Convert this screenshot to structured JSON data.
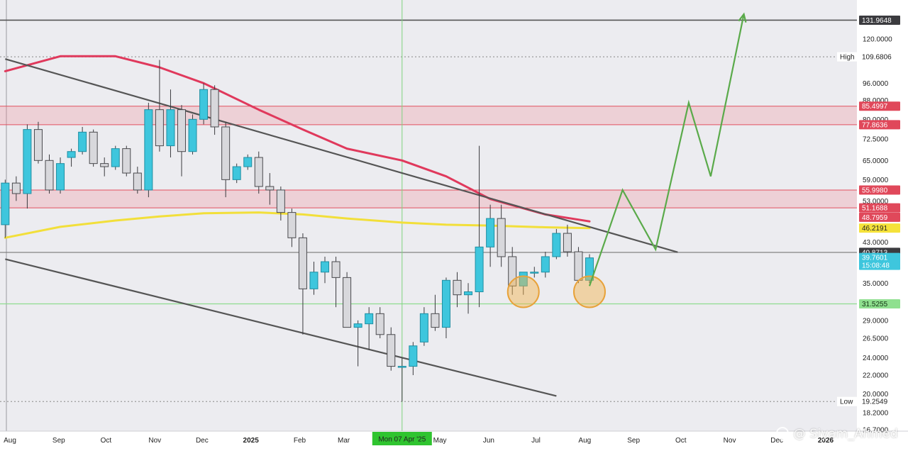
{
  "chart_data": {
    "type": "candlestick",
    "scale": "log",
    "y_ticks": [
      120.0,
      96.0,
      88.0,
      80.0,
      72.5,
      65.0,
      59.0,
      53.0,
      43.0,
      35.0,
      29.0,
      26.5,
      24.0,
      22.0,
      20.0,
      18.2,
      16.7
    ],
    "x_ticks": [
      {
        "label": "Aug",
        "date": "2024-08-01"
      },
      {
        "label": "Sep",
        "date": "2024-09-01"
      },
      {
        "label": "Oct",
        "date": "2024-10-01"
      },
      {
        "label": "Nov",
        "date": "2024-11-01"
      },
      {
        "label": "Dec",
        "date": "2024-12-01"
      },
      {
        "label": "2025",
        "date": "2025-01-01"
      },
      {
        "label": "Feb",
        "date": "2025-02-01"
      },
      {
        "label": "Mar",
        "date": "2025-03-01"
      },
      {
        "label": "May",
        "date": "2025-05-01"
      },
      {
        "label": "Jun",
        "date": "2025-06-01"
      },
      {
        "label": "Jul",
        "date": "2025-07-01"
      },
      {
        "label": "Aug",
        "date": "2025-08-01"
      },
      {
        "label": "Sep",
        "date": "2025-09-01"
      },
      {
        "label": "Oct",
        "date": "2025-10-01"
      },
      {
        "label": "Nov",
        "date": "2025-11-01"
      },
      {
        "label": "Dec",
        "date": "2025-12-01"
      },
      {
        "label": "2026",
        "date": "2026-01-01"
      }
    ],
    "crosshair": {
      "date": "2025-04-07",
      "label": "Mon 07 Apr '25"
    },
    "price_tags": [
      {
        "value": "131.9648",
        "price": 131.9648,
        "style": "dark"
      },
      {
        "value": "109.6806",
        "price": 109.6806,
        "style": "plain",
        "prefix": "High"
      },
      {
        "value": "85.4997",
        "price": 85.4997,
        "style": "red"
      },
      {
        "value": "77.8636",
        "price": 77.8636,
        "style": "red"
      },
      {
        "value": "55.9980",
        "price": 55.998,
        "style": "red"
      },
      {
        "value": "51.1688",
        "price": 51.1688,
        "style": "red"
      },
      {
        "value": "48.7959",
        "price": 48.7959,
        "style": "red"
      },
      {
        "value": "46.2191",
        "price": 46.2191,
        "style": "yellow"
      },
      {
        "value": "40.8713",
        "price": 40.8713,
        "style": "dark"
      },
      {
        "value": "39.7601",
        "price": 39.7601,
        "style": "cyan",
        "sub": "15:08:48"
      },
      {
        "value": "31.5255",
        "price": 31.5255,
        "style": "green"
      },
      {
        "value": "19.2549",
        "price": 19.2549,
        "style": "plain",
        "prefix": "Low"
      }
    ],
    "zones": [
      {
        "from": 77.8636,
        "to": 85.4997,
        "color": "#f08a93"
      },
      {
        "from": 51.1688,
        "to": 55.998,
        "color": "#f08a93"
      }
    ],
    "hlines": [
      {
        "price": 131.9648,
        "color": "#555555",
        "dash": "none"
      },
      {
        "price": 109.6806,
        "color": "#9a9a9a",
        "dash": "2,3"
      },
      {
        "price": 40.8713,
        "color": "#777777",
        "dash": "none"
      },
      {
        "price": 31.5255,
        "color": "#8fdc8f",
        "dash": "none"
      },
      {
        "price": 19.2549,
        "color": "#9a9a9a",
        "dash": "2,3"
      }
    ],
    "candles": [
      {
        "date": "2024-07-29",
        "o": 47,
        "h": 59,
        "l": 44,
        "c": 58
      },
      {
        "date": "2024-08-05",
        "o": 58,
        "h": 60,
        "l": 53,
        "c": 55
      },
      {
        "date": "2024-08-12",
        "o": 55,
        "h": 78,
        "l": 51,
        "c": 76
      },
      {
        "date": "2024-08-19",
        "o": 76,
        "h": 79,
        "l": 64,
        "c": 65
      },
      {
        "date": "2024-08-26",
        "o": 65,
        "h": 67,
        "l": 55,
        "c": 56
      },
      {
        "date": "2024-09-02",
        "o": 56,
        "h": 66,
        "l": 55,
        "c": 64
      },
      {
        "date": "2024-09-09",
        "o": 66,
        "h": 69,
        "l": 63,
        "c": 68
      },
      {
        "date": "2024-09-16",
        "o": 68,
        "h": 77,
        "l": 67,
        "c": 75
      },
      {
        "date": "2024-09-23",
        "o": 75,
        "h": 76,
        "l": 63,
        "c": 64
      },
      {
        "date": "2024-09-30",
        "o": 64,
        "h": 66,
        "l": 60,
        "c": 63
      },
      {
        "date": "2024-10-07",
        "o": 63,
        "h": 70,
        "l": 62,
        "c": 69
      },
      {
        "date": "2024-10-14",
        "o": 69,
        "h": 70,
        "l": 60,
        "c": 61
      },
      {
        "date": "2024-10-21",
        "o": 61,
        "h": 63,
        "l": 55,
        "c": 56
      },
      {
        "date": "2024-10-28",
        "o": 56,
        "h": 87,
        "l": 54,
        "c": 84
      },
      {
        "date": "2024-11-04",
        "o": 84,
        "h": 108,
        "l": 68,
        "c": 70
      },
      {
        "date": "2024-11-11",
        "o": 70,
        "h": 93,
        "l": 66,
        "c": 84
      },
      {
        "date": "2024-11-18",
        "o": 84,
        "h": 86,
        "l": 60,
        "c": 68
      },
      {
        "date": "2024-11-25",
        "o": 68,
        "h": 82,
        "l": 67,
        "c": 80
      },
      {
        "date": "2024-12-02",
        "o": 80,
        "h": 96,
        "l": 78,
        "c": 93
      },
      {
        "date": "2024-12-09",
        "o": 93,
        "h": 95,
        "l": 74,
        "c": 77
      },
      {
        "date": "2024-12-16",
        "o": 77,
        "h": 79,
        "l": 54,
        "c": 59
      },
      {
        "date": "2024-12-23",
        "o": 59,
        "h": 64,
        "l": 58,
        "c": 63
      },
      {
        "date": "2024-12-30",
        "o": 63,
        "h": 67,
        "l": 62,
        "c": 66
      },
      {
        "date": "2025-01-06",
        "o": 66,
        "h": 68,
        "l": 55,
        "c": 57
      },
      {
        "date": "2025-01-13",
        "o": 57,
        "h": 61,
        "l": 52,
        "c": 56
      },
      {
        "date": "2025-01-20",
        "o": 56,
        "h": 57,
        "l": 48,
        "c": 50
      },
      {
        "date": "2025-01-27",
        "o": 50,
        "h": 51,
        "l": 42,
        "c": 44
      },
      {
        "date": "2025-02-03",
        "o": 44,
        "h": 45,
        "l": 27,
        "c": 34
      },
      {
        "date": "2025-02-10",
        "o": 34,
        "h": 39,
        "l": 33,
        "c": 37
      },
      {
        "date": "2025-02-17",
        "o": 37,
        "h": 40,
        "l": 35,
        "c": 39
      },
      {
        "date": "2025-02-24",
        "o": 39,
        "h": 40,
        "l": 31,
        "c": 36
      },
      {
        "date": "2025-03-03",
        "o": 36,
        "h": 37,
        "l": 28,
        "c": 28
      },
      {
        "date": "2025-03-10",
        "o": 28,
        "h": 29,
        "l": 23,
        "c": 28.5
      },
      {
        "date": "2025-03-17",
        "o": 28.5,
        "h": 31,
        "l": 25,
        "c": 30
      },
      {
        "date": "2025-03-24",
        "o": 30,
        "h": 31,
        "l": 26.5,
        "c": 27
      },
      {
        "date": "2025-03-31",
        "o": 27,
        "h": 28,
        "l": 22.5,
        "c": 23
      },
      {
        "date": "2025-04-07",
        "o": 23,
        "h": 24,
        "l": 19.25,
        "c": 23
      },
      {
        "date": "2025-04-14",
        "o": 23,
        "h": 26,
        "l": 22,
        "c": 25.5
      },
      {
        "date": "2025-04-21",
        "o": 26,
        "h": 31,
        "l": 25.5,
        "c": 30
      },
      {
        "date": "2025-04-28",
        "o": 30,
        "h": 33,
        "l": 27.5,
        "c": 28
      },
      {
        "date": "2025-05-05",
        "o": 28,
        "h": 36,
        "l": 26.5,
        "c": 35.5
      },
      {
        "date": "2025-05-12",
        "o": 35.5,
        "h": 37,
        "l": 31,
        "c": 33
      },
      {
        "date": "2025-05-19",
        "o": 33,
        "h": 35,
        "l": 30,
        "c": 33.5
      },
      {
        "date": "2025-05-26",
        "o": 33.5,
        "h": 70,
        "l": 31,
        "c": 42
      },
      {
        "date": "2025-06-02",
        "o": 42,
        "h": 52,
        "l": 38,
        "c": 48.5
      },
      {
        "date": "2025-06-09",
        "o": 48.5,
        "h": 52,
        "l": 38,
        "c": 40
      },
      {
        "date": "2025-06-16",
        "o": 40,
        "h": 42,
        "l": 33,
        "c": 34.5
      },
      {
        "date": "2025-06-23",
        "o": 34.5,
        "h": 37,
        "l": 33,
        "c": 37
      },
      {
        "date": "2025-06-30",
        "o": 37,
        "h": 38,
        "l": 36,
        "c": 37
      },
      {
        "date": "2025-07-07",
        "o": 37,
        "h": 41,
        "l": 36,
        "c": 40
      },
      {
        "date": "2025-07-14",
        "o": 40,
        "h": 46,
        "l": 39.5,
        "c": 45
      },
      {
        "date": "2025-07-21",
        "o": 45,
        "h": 47,
        "l": 40,
        "c": 41
      },
      {
        "date": "2025-07-28",
        "o": 41,
        "h": 42,
        "l": 35,
        "c": 35.5
      },
      {
        "date": "2025-08-04",
        "o": 35.5,
        "h": 40.5,
        "l": 35,
        "c": 39.76
      }
    ],
    "trendlines": [
      {
        "from": {
          "date": "2024-07-29",
          "price": 108.5
        },
        "to": {
          "date": "2025-09-29",
          "price": 40.9
        },
        "color": "#555555"
      },
      {
        "from": {
          "date": "2024-07-29",
          "price": 39.5
        },
        "to": {
          "date": "2025-07-14",
          "price": 19.8
        },
        "color": "#555555"
      }
    ],
    "moving_averages": [
      {
        "color": "#e0395c",
        "points": [
          {
            "date": "2024-07-29",
            "price": 102
          },
          {
            "date": "2024-09-02",
            "price": 110
          },
          {
            "date": "2024-10-07",
            "price": 110
          },
          {
            "date": "2024-11-04",
            "price": 104
          },
          {
            "date": "2024-12-02",
            "price": 96
          },
          {
            "date": "2025-01-06",
            "price": 84
          },
          {
            "date": "2025-02-03",
            "price": 76
          },
          {
            "date": "2025-03-03",
            "price": 69
          },
          {
            "date": "2025-04-07",
            "price": 65
          },
          {
            "date": "2025-05-05",
            "price": 60
          },
          {
            "date": "2025-06-02",
            "price": 53.5
          },
          {
            "date": "2025-07-07",
            "price": 49.5
          },
          {
            "date": "2025-08-04",
            "price": 47.8
          }
        ]
      },
      {
        "color": "#f2df3a",
        "points": [
          {
            "date": "2024-07-29",
            "price": 44
          },
          {
            "date": "2024-09-02",
            "price": 46.5
          },
          {
            "date": "2024-10-07",
            "price": 48
          },
          {
            "date": "2024-11-04",
            "price": 49
          },
          {
            "date": "2024-12-02",
            "price": 49.8
          },
          {
            "date": "2025-01-06",
            "price": 50
          },
          {
            "date": "2025-02-03",
            "price": 49.5
          },
          {
            "date": "2025-03-03",
            "price": 48.5
          },
          {
            "date": "2025-04-07",
            "price": 47.5
          },
          {
            "date": "2025-05-05",
            "price": 47
          },
          {
            "date": "2025-06-02",
            "price": 46.8
          },
          {
            "date": "2025-07-07",
            "price": 46.4
          },
          {
            "date": "2025-08-04",
            "price": 46.2
          }
        ]
      }
    ],
    "projection": {
      "color": "#5aaa4a",
      "points": [
        {
          "date": "2025-08-04",
          "price": 34.5
        },
        {
          "date": "2025-08-25",
          "price": 56
        },
        {
          "date": "2025-09-15",
          "price": 41.5
        },
        {
          "date": "2025-10-06",
          "price": 87
        },
        {
          "date": "2025-10-20",
          "price": 60
        },
        {
          "date": "2025-11-10",
          "price": 136
        }
      ]
    },
    "highlight_circles": [
      {
        "date": "2025-06-23",
        "price": 33.5
      },
      {
        "date": "2025-08-04",
        "price": 33.5
      }
    ]
  },
  "watermark": "@ Siyam_Ahmed"
}
